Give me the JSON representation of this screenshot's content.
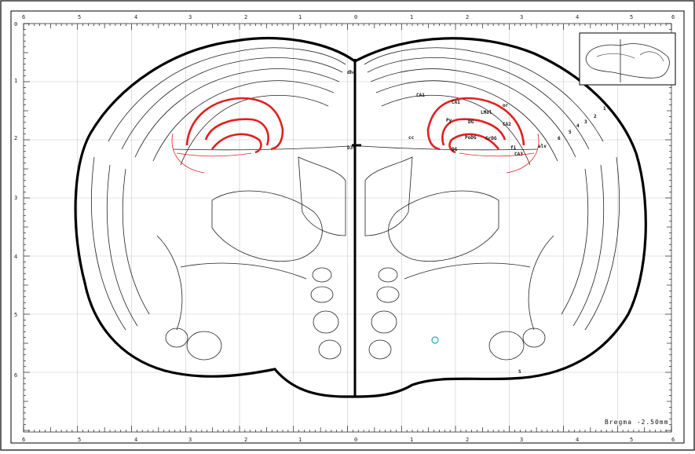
{
  "atlas": {
    "bregma_label": "Bregma  -2.50mm",
    "highlight_color": "#e02020",
    "marker_color": "#2aa8c8"
  },
  "axes": {
    "top_labels": [
      "6",
      "5",
      "4",
      "3",
      "2",
      "1",
      "0",
      "1",
      "2",
      "3",
      "4",
      "5",
      "6"
    ],
    "bottom_labels": [
      "6",
      "5",
      "4",
      "3",
      "2",
      "1",
      "0",
      "1",
      "2",
      "3",
      "4",
      "5",
      "6"
    ],
    "left_labels": [
      "0",
      "1",
      "2",
      "3",
      "4",
      "5",
      "6"
    ]
  },
  "region_labels": [
    "CA1",
    "CA1",
    "CA2",
    "CA3",
    "DG",
    "DG",
    "Py",
    "PoDG",
    "GrDG",
    "LMol",
    "D3V",
    "cc",
    "alv",
    "or",
    "dhc",
    "fi",
    "1",
    "2",
    "3",
    "4",
    "5",
    "6",
    "S"
  ]
}
